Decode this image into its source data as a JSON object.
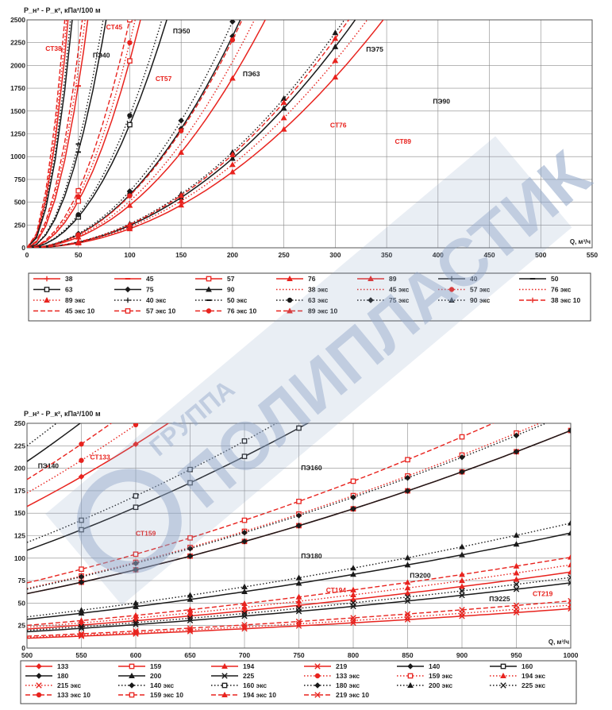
{
  "colors": {
    "red": "#e8231e",
    "black": "#1a1a1a",
    "grid": "#8a8a8a",
    "plot_bg": "#ffffff",
    "legend_border": "#444444",
    "watermark": "#8fa6c8"
  },
  "watermark": {
    "line1": "ГРУППА",
    "line2": "ПОЛИПЛАСТИК"
  },
  "chart_data": [
    {
      "type": "line",
      "ylabel": "P_н² - P_к², кПа²/100 м",
      "xlabel": "Q, м³/ч",
      "xlim": [
        0,
        550
      ],
      "ylim": [
        0,
        2500
      ],
      "xticks": [
        0,
        50,
        100,
        150,
        200,
        250,
        300,
        350,
        400,
        450,
        500,
        550
      ],
      "yticks": [
        0,
        250,
        500,
        750,
        1000,
        1250,
        1500,
        1750,
        2000,
        2250,
        2500
      ],
      "grid": true,
      "annotations": [
        {
          "text": "СТ45",
          "x": 77,
          "y": 2395,
          "color": "red"
        },
        {
          "text": "СТ38",
          "x": 18,
          "y": 2160,
          "color": "red"
        },
        {
          "text": "ПЭ40",
          "x": 64,
          "y": 2085,
          "color": "black"
        },
        {
          "text": "ПЭ50",
          "x": 142,
          "y": 2350,
          "color": "black"
        },
        {
          "text": "СТ57",
          "x": 125,
          "y": 1830,
          "color": "red"
        },
        {
          "text": "ПЭ63",
          "x": 210,
          "y": 1880,
          "color": "black"
        },
        {
          "text": "ПЭ75",
          "x": 330,
          "y": 2150,
          "color": "black"
        },
        {
          "text": "СТ76",
          "x": 295,
          "y": 1320,
          "color": "red"
        },
        {
          "text": "ПЭ90",
          "x": 395,
          "y": 1580,
          "color": "black"
        },
        {
          "text": "СТ89",
          "x": 358,
          "y": 1140,
          "color": "red"
        }
      ],
      "series": [
        {
          "name": "38",
          "color": "red",
          "dash": "solid",
          "marker": "plus",
          "k": 1.55
        },
        {
          "name": "45",
          "color": "red",
          "dash": "solid",
          "marker": "dash",
          "k": 0.71
        },
        {
          "name": "57",
          "color": "red",
          "dash": "solid",
          "marker": "square",
          "k": 0.205
        },
        {
          "name": "76",
          "color": "red",
          "dash": "solid",
          "marker": "triangle",
          "k": 0.0465
        },
        {
          "name": "89",
          "color": "red",
          "dash": "solid",
          "marker": "triangle",
          "k": 0.0208
        },
        {
          "name": "40",
          "color": "black",
          "dash": "solid",
          "marker": "plus",
          "k": 1.28
        },
        {
          "name": "50",
          "color": "black",
          "dash": "solid",
          "marker": "dash",
          "k": 0.42
        },
        {
          "name": "63",
          "color": "black",
          "dash": "solid",
          "marker": "square",
          "k": 0.135
        },
        {
          "name": "75",
          "color": "black",
          "dash": "solid",
          "marker": "diamond",
          "k": 0.058
        },
        {
          "name": "90",
          "color": "black",
          "dash": "solid",
          "marker": "triangle",
          "k": 0.0245
        },
        {
          "name": "38 экс",
          "color": "red",
          "dash": "dotted",
          "marker": "none",
          "k": 1.68
        },
        {
          "name": "45 экс",
          "color": "red",
          "dash": "dotted",
          "marker": "none",
          "k": 0.78
        },
        {
          "name": "57 экс",
          "color": "red",
          "dash": "dotted",
          "marker": "circle",
          "k": 0.225
        },
        {
          "name": "76 экс",
          "color": "red",
          "dash": "dotted",
          "marker": "none",
          "k": 0.051
        },
        {
          "name": "89 экс",
          "color": "red",
          "dash": "dotted",
          "marker": "triangle",
          "k": 0.0228
        },
        {
          "name": "40 экс",
          "color": "black",
          "dash": "dotted",
          "marker": "plus",
          "k": 1.38
        },
        {
          "name": "50 экс",
          "color": "black",
          "dash": "dotted",
          "marker": "dash",
          "k": 0.455
        },
        {
          "name": "63 экс",
          "color": "black",
          "dash": "dotted",
          "marker": "circle",
          "k": 0.145
        },
        {
          "name": "75 экс",
          "color": "black",
          "dash": "dotted",
          "marker": "diamond",
          "k": 0.062
        },
        {
          "name": "90 экс",
          "color": "black",
          "dash": "dotted",
          "marker": "triangle",
          "k": 0.0262
        },
        {
          "name": "38 экс 10",
          "color": "red",
          "dash": "dashed",
          "marker": "plus",
          "k": 1.85
        },
        {
          "name": "45 экс 10",
          "color": "red",
          "dash": "dashed",
          "marker": "none",
          "k": 0.86
        },
        {
          "name": "57 экс 10",
          "color": "red",
          "dash": "dashed",
          "marker": "square",
          "k": 0.25
        },
        {
          "name": "76 экс 10",
          "color": "red",
          "dash": "dashed",
          "marker": "circle",
          "k": 0.057
        },
        {
          "name": "89 экс 10",
          "color": "red",
          "dash": "dashed",
          "marker": "triangle",
          "k": 0.0255
        }
      ]
    },
    {
      "type": "line",
      "ylabel": "P_н² - P_к², кПа²/100 м",
      "xlabel": "Q, м³/ч",
      "xlim": [
        500,
        1000
      ],
      "ylim": [
        0,
        250
      ],
      "xticks": [
        500,
        550,
        600,
        650,
        700,
        750,
        800,
        850,
        900,
        950,
        1000
      ],
      "yticks": [
        0,
        25,
        50,
        75,
        100,
        125,
        150,
        175,
        200,
        225,
        250
      ],
      "grid": true,
      "annotations": [
        {
          "text": "ПЭ140",
          "x": 510,
          "y": 200,
          "color": "black"
        },
        {
          "text": "СТ133",
          "x": 558,
          "y": 210,
          "color": "red"
        },
        {
          "text": "ПЭ160",
          "x": 752,
          "y": 198,
          "color": "black"
        },
        {
          "text": "СТ159",
          "x": 600,
          "y": 125,
          "color": "red"
        },
        {
          "text": "ПЭ180",
          "x": 752,
          "y": 100,
          "color": "black"
        },
        {
          "text": "ПЭ200",
          "x": 852,
          "y": 78,
          "color": "black"
        },
        {
          "text": "СТ194",
          "x": 775,
          "y": 62,
          "color": "red"
        },
        {
          "text": "ПЭ225",
          "x": 925,
          "y": 52,
          "color": "black"
        },
        {
          "text": "СТ219",
          "x": 965,
          "y": 58,
          "color": "red"
        }
      ],
      "series": [
        {
          "name": "133",
          "color": "red",
          "dash": "solid",
          "marker": "diamond",
          "k": 0.00063
        },
        {
          "name": "159",
          "color": "red",
          "dash": "solid",
          "marker": "square",
          "k": 0.000242
        },
        {
          "name": "194",
          "color": "red",
          "dash": "solid",
          "marker": "triangle",
          "k": 8.45e-05
        },
        {
          "name": "219",
          "color": "red",
          "dash": "solid",
          "marker": "cross",
          "k": 4.38e-05
        },
        {
          "name": "140",
          "color": "black",
          "dash": "solid",
          "marker": "diamond",
          "k": 0.00083
        },
        {
          "name": "160",
          "color": "black",
          "dash": "solid",
          "marker": "square",
          "k": 0.000435
        },
        {
          "name": "180",
          "color": "black",
          "dash": "solid",
          "marker": "diamond",
          "k": 0.000242
        },
        {
          "name": "200",
          "color": "black",
          "dash": "solid",
          "marker": "triangle",
          "k": 0.000128
        },
        {
          "name": "225",
          "color": "black",
          "dash": "solid",
          "marker": "cross",
          "k": 7.25e-05
        },
        {
          "name": "133 экс",
          "color": "red",
          "dash": "dotted",
          "marker": "circle",
          "k": 0.00069
        },
        {
          "name": "159 экс",
          "color": "red",
          "dash": "dotted",
          "marker": "square",
          "k": 0.000265
        },
        {
          "name": "194 экс",
          "color": "red",
          "dash": "dotted",
          "marker": "triangle",
          "k": 9.25e-05
        },
        {
          "name": "215 экс",
          "color": "red",
          "dash": "dotted",
          "marker": "cross",
          "k": 4.78e-05
        },
        {
          "name": "140 экс",
          "color": "black",
          "dash": "dotted",
          "marker": "diamond",
          "k": 0.0009
        },
        {
          "name": "160 экс",
          "color": "black",
          "dash": "dotted",
          "marker": "square",
          "k": 0.00047
        },
        {
          "name": "180 экс",
          "color": "black",
          "dash": "dotted",
          "marker": "diamond",
          "k": 0.000262
        },
        {
          "name": "200 экс",
          "color": "black",
          "dash": "dotted",
          "marker": "triangle",
          "k": 0.000139
        },
        {
          "name": "225 экс",
          "color": "black",
          "dash": "dotted",
          "marker": "cross",
          "k": 7.85e-05
        },
        {
          "name": "133 экс 10",
          "color": "red",
          "dash": "dashed",
          "marker": "circle",
          "k": 0.00075
        },
        {
          "name": "159 экс 10",
          "color": "red",
          "dash": "dashed",
          "marker": "square",
          "k": 0.00029
        },
        {
          "name": "194 экс 10",
          "color": "red",
          "dash": "dashed",
          "marker": "triangle",
          "k": 0.000101
        },
        {
          "name": "219 экс 10",
          "color": "red",
          "dash": "dashed",
          "marker": "cross",
          "k": 5.25e-05
        }
      ]
    }
  ]
}
